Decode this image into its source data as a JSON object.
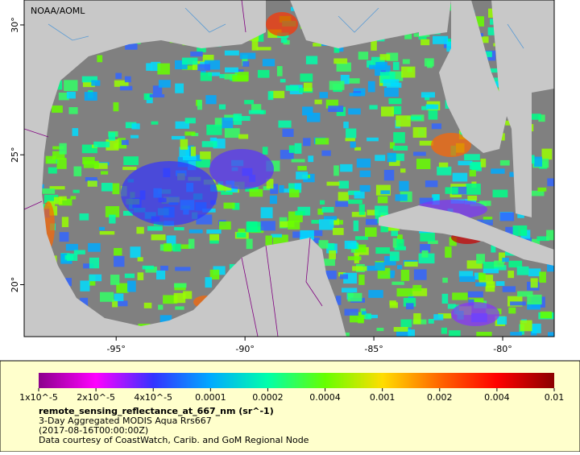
{
  "map": {
    "credit": "NOAA/AOML",
    "xlim": [
      -98.57,
      -78.0
    ],
    "ylim": [
      18.0,
      30.96
    ],
    "xticks": [
      {
        "value": -95,
        "label": "-95°"
      },
      {
        "value": -90,
        "label": "-90°"
      },
      {
        "value": -85,
        "label": "-85°"
      },
      {
        "value": -80,
        "label": "-80°"
      }
    ],
    "yticks": [
      {
        "value": 20,
        "label": "20°"
      },
      {
        "value": 25,
        "label": "25°"
      },
      {
        "value": 30,
        "label": "30°"
      }
    ]
  },
  "colorbar": {
    "colors": [
      "#8b008b",
      "#ff00ff",
      "#3333ff",
      "#00aaff",
      "#00ffaa",
      "#66ff00",
      "#ffdd00",
      "#ff6600",
      "#ff0000",
      "#8b0000"
    ],
    "ticks": [
      {
        "value": 1e-05,
        "label": "1x10^-5"
      },
      {
        "value": 2e-05,
        "label": "2x10^-5"
      },
      {
        "value": 4e-05,
        "label": "4x10^-5"
      },
      0.0001,
      0.0002,
      0.0004,
      0.001,
      0.002,
      0.004,
      0.01
    ]
  },
  "legend": {
    "variable": "remote_sensing_reflectance_at_667_nm (sr^-1)",
    "lines": [
      "3-Day Aggregated MODIS Aqua Rrs667",
      "(2017-08-16T00:00:00Z)",
      "Data courtesy of CoastWatch, Carib. and GoM Regional Node"
    ]
  }
}
